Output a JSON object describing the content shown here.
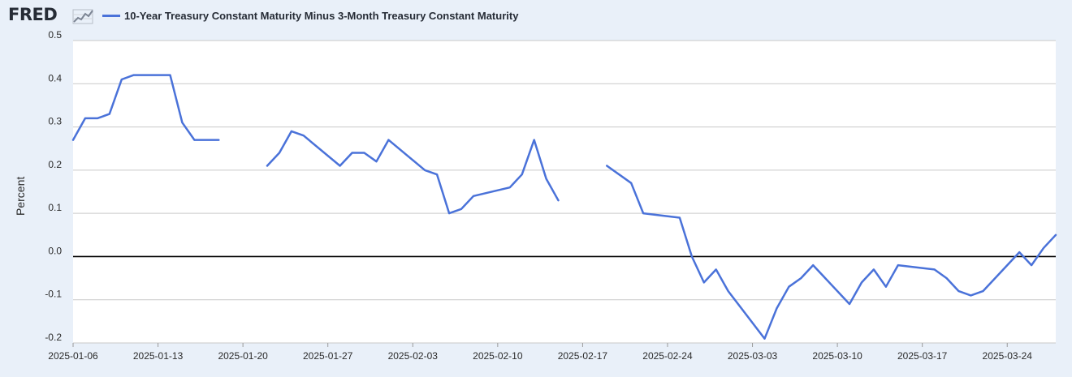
{
  "header": {
    "logo_text": "FRED",
    "logo_icon": "fred-chart-icon",
    "legend_label": "10-Year Treasury Constant Maturity Minus 3-Month Treasury Constant Maturity"
  },
  "colors": {
    "series": "#4a72d9",
    "zero_line": "#000000",
    "grid": "#c9c9c9",
    "plot_bg": "#ffffff",
    "page_bg": "#e9f0f9"
  },
  "chart_data": {
    "type": "line",
    "title": "",
    "xlabel": "",
    "ylabel": "Percent",
    "ylim": [
      -0.2,
      0.5
    ],
    "y_ticks": [
      0.5,
      0.4,
      0.3,
      0.2,
      0.1,
      0.0,
      -0.1,
      -0.2
    ],
    "y_tick_labels": [
      "0.5",
      "0.4",
      "0.3",
      "0.2",
      "0.1",
      "0.0",
      "-0.1",
      "-0.2"
    ],
    "xlim": [
      "2025-01-06",
      "2025-03-27"
    ],
    "x_tick_labels": [
      "2025-01-06",
      "2025-01-13",
      "2025-01-20",
      "2025-01-27",
      "2025-02-03",
      "2025-02-10",
      "2025-02-17",
      "2025-02-24",
      "2025-03-03",
      "2025-03-10",
      "2025-03-17",
      "2025-03-24"
    ],
    "grid": true,
    "legend": "top-left",
    "series": [
      {
        "name": "10-Year Treasury Constant Maturity Minus 3-Month Treasury Constant Maturity",
        "segments": [
          {
            "x": [
              "2025-01-06",
              "2025-01-07",
              "2025-01-08",
              "2025-01-09",
              "2025-01-10",
              "2025-01-11",
              "2025-01-14",
              "2025-01-15",
              "2025-01-16",
              "2025-01-17",
              "2025-01-18"
            ],
            "y": [
              0.27,
              0.32,
              0.32,
              0.33,
              0.41,
              0.42,
              0.42,
              0.31,
              0.27,
              0.27,
              0.27
            ]
          },
          {
            "x": [
              "2025-01-22",
              "2025-01-23",
              "2025-01-24",
              "2025-01-25",
              "2025-01-28",
              "2025-01-29",
              "2025-01-30",
              "2025-01-31",
              "2025-02-01",
              "2025-02-04",
              "2025-02-05",
              "2025-02-06",
              "2025-02-07",
              "2025-02-08",
              "2025-02-11",
              "2025-02-12",
              "2025-02-13",
              "2025-02-14",
              "2025-02-15"
            ],
            "y": [
              0.21,
              0.24,
              0.29,
              0.28,
              0.21,
              0.24,
              0.24,
              0.22,
              0.27,
              0.2,
              0.19,
              0.1,
              0.11,
              0.14,
              0.16,
              0.19,
              0.27,
              0.18,
              0.13
            ]
          },
          {
            "x": [
              "2025-02-19",
              "2025-02-21",
              "2025-02-22",
              "2025-02-25",
              "2025-02-26",
              "2025-02-27",
              "2025-02-28",
              "2025-03-01",
              "2025-03-04",
              "2025-03-05",
              "2025-03-06",
              "2025-03-07",
              "2025-03-08",
              "2025-03-11",
              "2025-03-12",
              "2025-03-13",
              "2025-03-14",
              "2025-03-15",
              "2025-03-18",
              "2025-03-19",
              "2025-03-20",
              "2025-03-21",
              "2025-03-22",
              "2025-03-25",
              "2025-03-26",
              "2025-03-27",
              "2025-03-28"
            ],
            "y": [
              0.21,
              0.17,
              0.1,
              0.09,
              0.0,
              -0.06,
              -0.03,
              -0.08,
              -0.19,
              -0.12,
              -0.07,
              -0.05,
              -0.02,
              -0.11,
              -0.06,
              -0.03,
              -0.07,
              -0.02,
              -0.03,
              -0.05,
              -0.08,
              -0.09,
              -0.08,
              0.01,
              -0.02,
              0.02,
              0.05
            ]
          }
        ]
      }
    ]
  }
}
